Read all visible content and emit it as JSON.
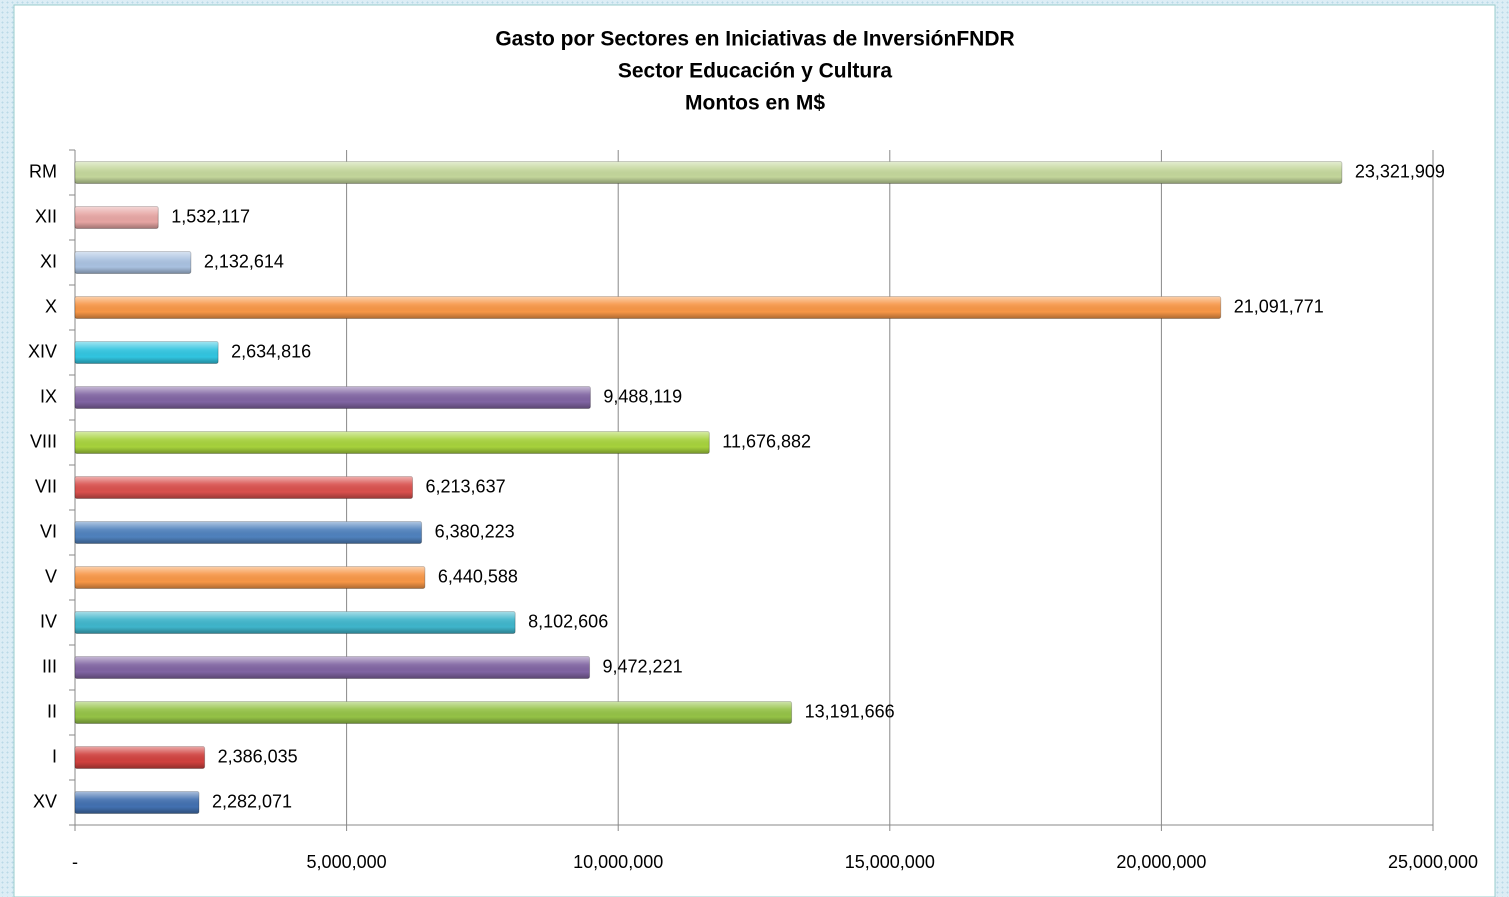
{
  "chart_data": {
    "type": "bar",
    "orientation": "horizontal",
    "title": [
      "Gasto por Sectores en Iniciativas de InversiónFNDR",
      "Sector Educación y Cultura",
      "Montos en M$"
    ],
    "categories": [
      "RM",
      "XII",
      "XI",
      "X",
      "XIV",
      "IX",
      "VIII",
      "VII",
      "VI",
      "V",
      "IV",
      "III",
      "II",
      "I",
      "XV"
    ],
    "values": [
      23321909,
      1532117,
      2132614,
      21091771,
      2634816,
      9488119,
      11676882,
      6213637,
      6380223,
      6440588,
      8102606,
      9472221,
      13191666,
      2386035,
      2282071
    ],
    "value_labels": [
      "23,321,909",
      "1,532,117",
      "2,132,614",
      "21,091,771",
      "2,634,816",
      "9,488,119",
      "11,676,882",
      "6,213,637",
      "6,380,223",
      "6,440,588",
      "8,102,606",
      "9,472,221",
      "13,191,666",
      "2,386,035",
      "2,282,071"
    ],
    "colors": [
      "#c3d69b",
      "#e6a5a3",
      "#a9c1e0",
      "#f79646",
      "#31c5e0",
      "#8064a2",
      "#a6d23c",
      "#d9504d",
      "#4f81bd",
      "#f79646",
      "#3fb5cb",
      "#8064a2",
      "#94c246",
      "#d0413e",
      "#4270b0"
    ],
    "xlim": [
      0,
      25000000
    ],
    "xticks": [
      {
        "value": 0,
        "label": "-"
      },
      {
        "value": 5000000,
        "label": "5,000,000"
      },
      {
        "value": 10000000,
        "label": "10,000,000"
      },
      {
        "value": 15000000,
        "label": "15,000,000"
      },
      {
        "value": 20000000,
        "label": "20,000,000"
      },
      {
        "value": 25000000,
        "label": "25,000,000"
      }
    ],
    "grid": true
  }
}
